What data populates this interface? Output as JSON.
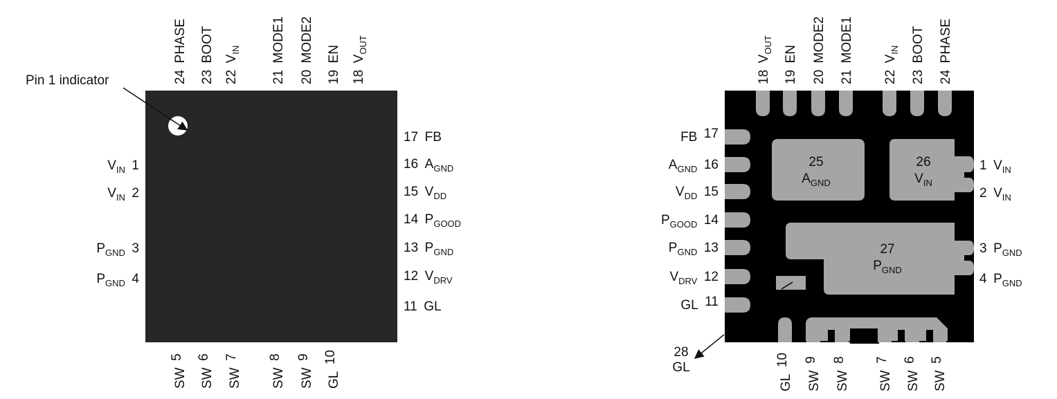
{
  "top_view": {
    "pin1_label": "Pin 1 indicator",
    "top_pins": [
      {
        "num": "24",
        "name": "PHASE"
      },
      {
        "num": "23",
        "name": "BOOT"
      },
      {
        "num": "22",
        "name": "V",
        "sub": "IN"
      },
      {
        "num": "21",
        "name": "MODE1"
      },
      {
        "num": "20",
        "name": "MODE2"
      },
      {
        "num": "19",
        "name": "EN"
      },
      {
        "num": "18",
        "name": "V",
        "sub": "OUT"
      }
    ],
    "left_pins": [
      {
        "num": "1",
        "name": "V",
        "sub": "IN"
      },
      {
        "num": "2",
        "name": "V",
        "sub": "IN"
      },
      {
        "num": "3",
        "name": "P",
        "sub": "GND"
      },
      {
        "num": "4",
        "name": "P",
        "sub": "GND"
      }
    ],
    "right_pins": [
      {
        "num": "17",
        "name": "FB"
      },
      {
        "num": "16",
        "name": "A",
        "sub": "GND"
      },
      {
        "num": "15",
        "name": "V",
        "sub": "DD"
      },
      {
        "num": "14",
        "name": "P",
        "sub": "GOOD"
      },
      {
        "num": "13",
        "name": "P",
        "sub": "GND"
      },
      {
        "num": "12",
        "name": "V",
        "sub": "DRV"
      },
      {
        "num": "11",
        "name": "GL"
      }
    ],
    "bottom_pins": [
      {
        "num": "5",
        "name": "SW"
      },
      {
        "num": "6",
        "name": "SW"
      },
      {
        "num": "7",
        "name": "SW"
      },
      {
        "num": "8",
        "name": "SW"
      },
      {
        "num": "9",
        "name": "SW"
      },
      {
        "num": "10",
        "name": "GL"
      }
    ]
  },
  "bottom_view": {
    "top_pins": [
      {
        "num": "18",
        "name": "V",
        "sub": "OUT"
      },
      {
        "num": "19",
        "name": "EN"
      },
      {
        "num": "20",
        "name": "MODE2"
      },
      {
        "num": "21",
        "name": "MODE1"
      },
      {
        "num": "22",
        "name": "V",
        "sub": "IN"
      },
      {
        "num": "23",
        "name": "BOOT"
      },
      {
        "num": "24",
        "name": "PHASE"
      }
    ],
    "left_pins": [
      {
        "num": "17",
        "name": "FB"
      },
      {
        "num": "16",
        "name": "A",
        "sub": "GND"
      },
      {
        "num": "15",
        "name": "V",
        "sub": "DD"
      },
      {
        "num": "14",
        "name": "P",
        "sub": "GOOD"
      },
      {
        "num": "13",
        "name": "P",
        "sub": "GND"
      },
      {
        "num": "12",
        "name": "V",
        "sub": "DRV"
      },
      {
        "num": "11",
        "name": "GL"
      }
    ],
    "right_pins": [
      {
        "num": "1",
        "name": "V",
        "sub": "IN"
      },
      {
        "num": "2",
        "name": "V",
        "sub": "IN"
      },
      {
        "num": "3",
        "name": "P",
        "sub": "GND"
      },
      {
        "num": "4",
        "name": "P",
        "sub": "GND"
      }
    ],
    "bottom_pins": [
      {
        "num": "10",
        "name": "GL"
      },
      {
        "num": "9",
        "name": "SW"
      },
      {
        "num": "8",
        "name": "SW"
      },
      {
        "num": "7",
        "name": "SW"
      },
      {
        "num": "6",
        "name": "SW"
      },
      {
        "num": "5",
        "name": "SW"
      }
    ],
    "pad25": {
      "num": "25",
      "name": "A",
      "sub": "GND"
    },
    "pad26": {
      "num": "26",
      "name": "V",
      "sub": "IN"
    },
    "pad27": {
      "num": "27",
      "name": "P",
      "sub": "GND"
    },
    "pad28": {
      "num": "28",
      "name": "GL"
    }
  },
  "colors": {
    "body": "#272727",
    "pad": "#a5a5a5",
    "black": "#000000"
  }
}
